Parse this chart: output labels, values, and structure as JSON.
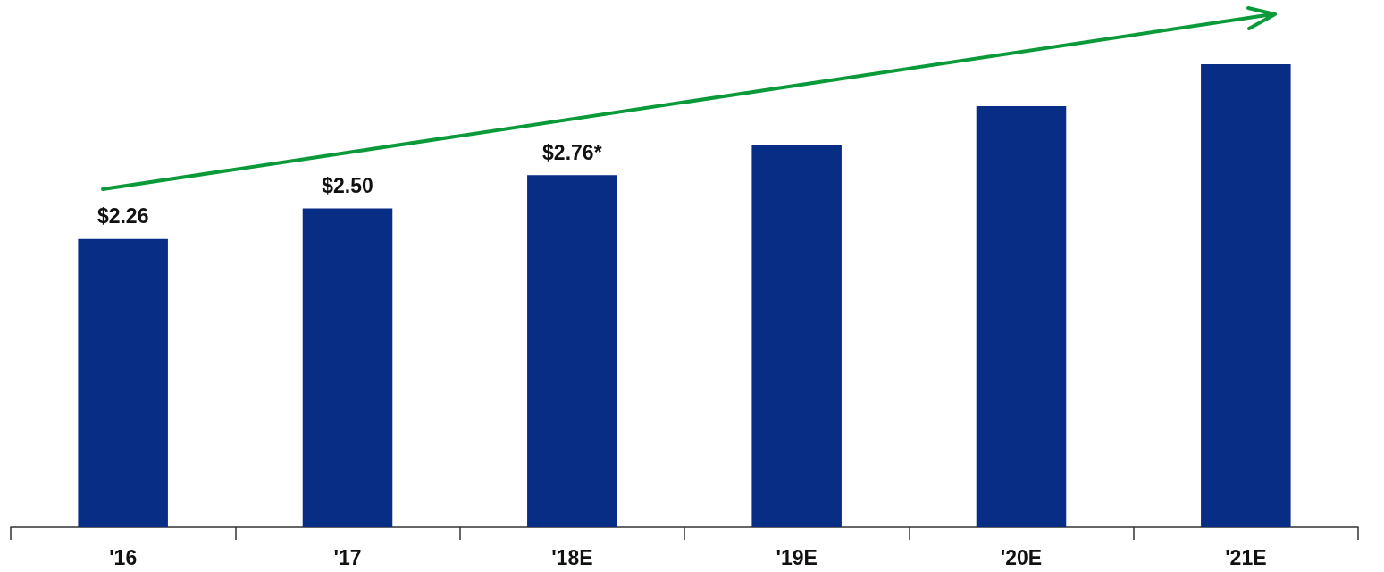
{
  "chart_data": {
    "type": "bar",
    "categories": [
      "'16",
      "'17",
      "'18E",
      "'19E",
      "'20E",
      "'21E"
    ],
    "values": [
      2.26,
      2.5,
      2.76,
      3.0,
      3.3,
      3.63
    ],
    "value_labels": [
      "$2.26",
      "$2.50",
      "$2.76*",
      null,
      null,
      null
    ],
    "color": "#072d84",
    "tick_labels": "x"
  }
}
